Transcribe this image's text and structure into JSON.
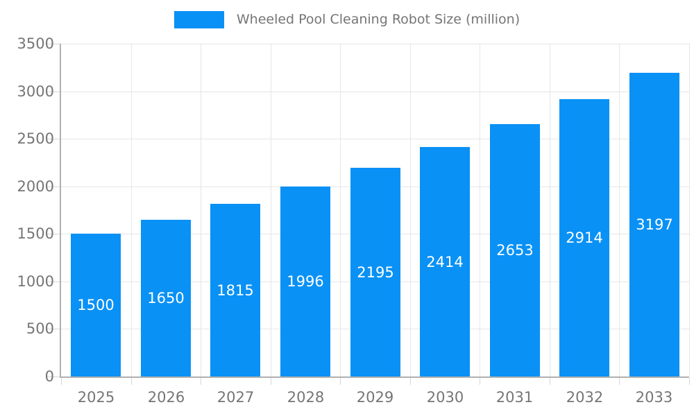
{
  "legend": {
    "label": "Wheeled Pool Cleaning Robot Size (million)"
  },
  "colors": {
    "bar": "#0991F5",
    "bar_label": "#ffffff",
    "axis_text": "#757575",
    "grid": "#e6e6e6",
    "axis_line": "#b0b0b0",
    "tick": "#d6d6d6"
  },
  "chart_data": {
    "type": "bar",
    "title": "Wheeled Pool Cleaning Robot Size (million)",
    "categories": [
      "2025",
      "2026",
      "2027",
      "2028",
      "2029",
      "2030",
      "2031",
      "2032",
      "2033"
    ],
    "series": [
      {
        "name": "Wheeled Pool Cleaning Robot Size (million)",
        "values": [
          1500,
          1650,
          1815,
          1996,
          2195,
          2414,
          2653,
          2914,
          3197
        ]
      }
    ],
    "xlabel": "",
    "ylabel": "",
    "ylim": [
      0,
      3500
    ],
    "ytick_step": 500,
    "yticks": [
      "0",
      "500",
      "1000",
      "1500",
      "2000",
      "2500",
      "3000",
      "3500"
    ],
    "grid": true,
    "legend_position": "top-center",
    "value_labels": "inside-center"
  }
}
